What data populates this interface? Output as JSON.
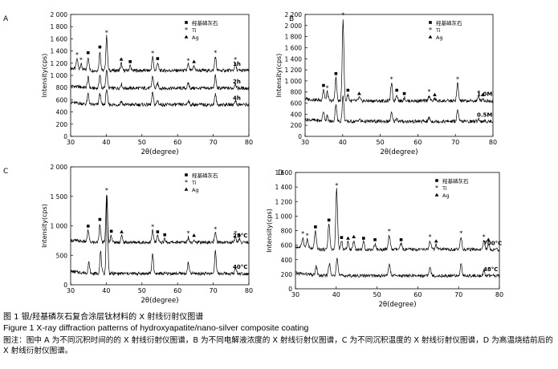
{
  "figure": {
    "caption_cn": "图 1   银/羟基磷灰石复合涂层钛材料的 X 射线衍射仪图谱",
    "caption_en": "Figure 1   X-ray diffraction patterns of hydroxyapatite/nano-silver composite coating",
    "note": "图注：图中 A 为不同沉积时间的的 X 射线衍射仪图谱，B 为不同电解液浓度的 X 射线衍射仪图谱，C 为不同沉积温度的 X 射线衍射仪图谱，D 为高温烧结前后的 X 射线衍射仪图谱。"
  },
  "chart_data": [
    {
      "panel": "A",
      "type": "line",
      "xlabel": "2θ(degree)",
      "ylabel": "Intensity(cps)",
      "xlim": [
        30,
        80
      ],
      "ylim": [
        0,
        2000
      ],
      "xticks": [
        30,
        40,
        50,
        60,
        70,
        80
      ],
      "yticks": [
        0,
        200,
        400,
        600,
        800,
        1000,
        1200,
        1400,
        1600,
        1800,
        2000
      ],
      "legend": [
        "羟基磷灰石",
        "Ti",
        "Ag"
      ],
      "series": [
        {
          "name": "1h",
          "baseline": 1080,
          "peaks": [
            [
              31.8,
              170
            ],
            [
              32.9,
              90
            ],
            [
              34.9,
              220
            ],
            [
              38.2,
              320
            ],
            [
              40.1,
              560
            ],
            [
              44.2,
              120
            ],
            [
              46.7,
              80
            ],
            [
              53.0,
              220
            ],
            [
              54.4,
              130
            ],
            [
              63.0,
              100
            ],
            [
              64.6,
              80
            ],
            [
              70.6,
              230
            ],
            [
              76.2,
              120
            ]
          ]
        },
        {
          "name": "2h",
          "baseline": 790,
          "peaks": [
            [
              34.9,
              170
            ],
            [
              38.2,
              220
            ],
            [
              40.1,
              320
            ],
            [
              44.2,
              70
            ],
            [
              53.0,
              200
            ],
            [
              54.4,
              80
            ],
            [
              63.0,
              80
            ],
            [
              70.6,
              200
            ],
            [
              76.2,
              80
            ]
          ]
        },
        {
          "name": "4h",
          "baseline": 520,
          "peaks": [
            [
              34.9,
              170
            ],
            [
              38.2,
              190
            ],
            [
              40.1,
              260
            ],
            [
              44.2,
              60
            ],
            [
              53.0,
              190
            ],
            [
              54.4,
              70
            ],
            [
              63.0,
              70
            ],
            [
              70.6,
              170
            ],
            [
              76.2,
              70
            ]
          ]
        }
      ]
    },
    {
      "panel": "B",
      "type": "line",
      "xlabel": "2θ(degree)",
      "ylabel": "Intensity(cps)",
      "xlim": [
        30,
        80
      ],
      "ylim": [
        0,
        2200
      ],
      "xticks": [
        30,
        40,
        50,
        60,
        70,
        80
      ],
      "yticks": [
        0,
        200,
        400,
        600,
        800,
        1000,
        1200,
        1400,
        1600,
        1800,
        2000,
        2200
      ],
      "legend": [
        "羟基磷灰石",
        "Ti",
        "Ag"
      ],
      "series": [
        {
          "name": "1.0M",
          "baseline": 640,
          "peaks": [
            [
              34.9,
              200
            ],
            [
              35.9,
              160
            ],
            [
              38.2,
              420
            ],
            [
              40.1,
              1480
            ],
            [
              41.4,
              120
            ],
            [
              44.4,
              60
            ],
            [
              53.0,
              320
            ],
            [
              54.4,
              120
            ],
            [
              56.4,
              60
            ],
            [
              63.0,
              100
            ],
            [
              64.5,
              40
            ],
            [
              70.6,
              320
            ],
            [
              76.2,
              80
            ],
            [
              77.3,
              40
            ]
          ]
        },
        {
          "name": "0.5M",
          "baseline": 270,
          "peaks": [
            [
              34.9,
              180
            ],
            [
              35.9,
              90
            ],
            [
              38.2,
              320
            ],
            [
              40.1,
              460
            ],
            [
              44.4,
              40
            ],
            [
              53.0,
              150
            ],
            [
              54.4,
              60
            ],
            [
              63.0,
              70
            ],
            [
              70.6,
              200
            ],
            [
              76.2,
              50
            ]
          ]
        }
      ]
    },
    {
      "panel": "C",
      "type": "line",
      "xlabel": "2θ(degree)",
      "ylabel": "Intensity(cps)",
      "xlim": [
        30,
        80
      ],
      "ylim": [
        0,
        2000
      ],
      "xticks": [
        30,
        40,
        50,
        60,
        70,
        80
      ],
      "yticks": [
        0,
        500,
        1000,
        1500,
        2000
      ],
      "legend": [
        "羟基磷灰石",
        "Ti",
        "Ag"
      ],
      "series": [
        {
          "name": "25°C",
          "baseline": 720,
          "peaks": [
            [
              34.9,
              200
            ],
            [
              38.2,
              320
            ],
            [
              40.1,
              820
            ],
            [
              41.4,
              120
            ],
            [
              44.3,
              110
            ],
            [
              53.0,
              200
            ],
            [
              54.4,
              110
            ],
            [
              56.4,
              60
            ],
            [
              63.0,
              90
            ],
            [
              64.6,
              50
            ],
            [
              70.6,
              160
            ],
            [
              76.2,
              90
            ],
            [
              77.3,
              60
            ]
          ]
        },
        {
          "name": "40°C",
          "baseline": 190,
          "peaks": [
            [
              35.1,
              180
            ],
            [
              38.4,
              380
            ],
            [
              40.2,
              1320
            ],
            [
              53.0,
              340
            ],
            [
              63.0,
              180
            ],
            [
              70.6,
              380
            ],
            [
              76.3,
              110
            ]
          ]
        }
      ]
    },
    {
      "panel": "D",
      "type": "line",
      "xlabel": "2θ(degree)",
      "ylabel": "Intensity(cps)",
      "xlim": [
        30,
        80
      ],
      "ylim": [
        0,
        1600
      ],
      "xticks": [
        30,
        40,
        50,
        60,
        70,
        80
      ],
      "yticks": [
        0,
        200,
        400,
        600,
        800,
        1000,
        1200,
        1400,
        1600
      ],
      "legend": [
        "羟基磷灰石",
        "Ti",
        "Ag"
      ],
      "series": [
        {
          "name": "700°C",
          "baseline": 540,
          "peaks": [
            [
              31.8,
              140
            ],
            [
              32.9,
              120
            ],
            [
              34.9,
              250
            ],
            [
              38.2,
              350
            ],
            [
              40.1,
              830
            ],
            [
              41.3,
              110
            ],
            [
              42.9,
              100
            ],
            [
              44.3,
              120
            ],
            [
              46.7,
              100
            ],
            [
              49.5,
              80
            ],
            [
              53.0,
              200
            ],
            [
              55.9,
              80
            ],
            [
              63.0,
              120
            ],
            [
              64.5,
              60
            ],
            [
              70.6,
              170
            ],
            [
              76.2,
              120
            ],
            [
              77.3,
              80
            ]
          ]
        },
        {
          "name": "48°C",
          "baseline": 180,
          "peaks": [
            [
              35.1,
              120
            ],
            [
              38.3,
              170
            ],
            [
              40.2,
              260
            ],
            [
              53.0,
              160
            ],
            [
              63.0,
              100
            ],
            [
              70.6,
              160
            ],
            [
              76.2,
              60
            ]
          ]
        }
      ]
    }
  ]
}
